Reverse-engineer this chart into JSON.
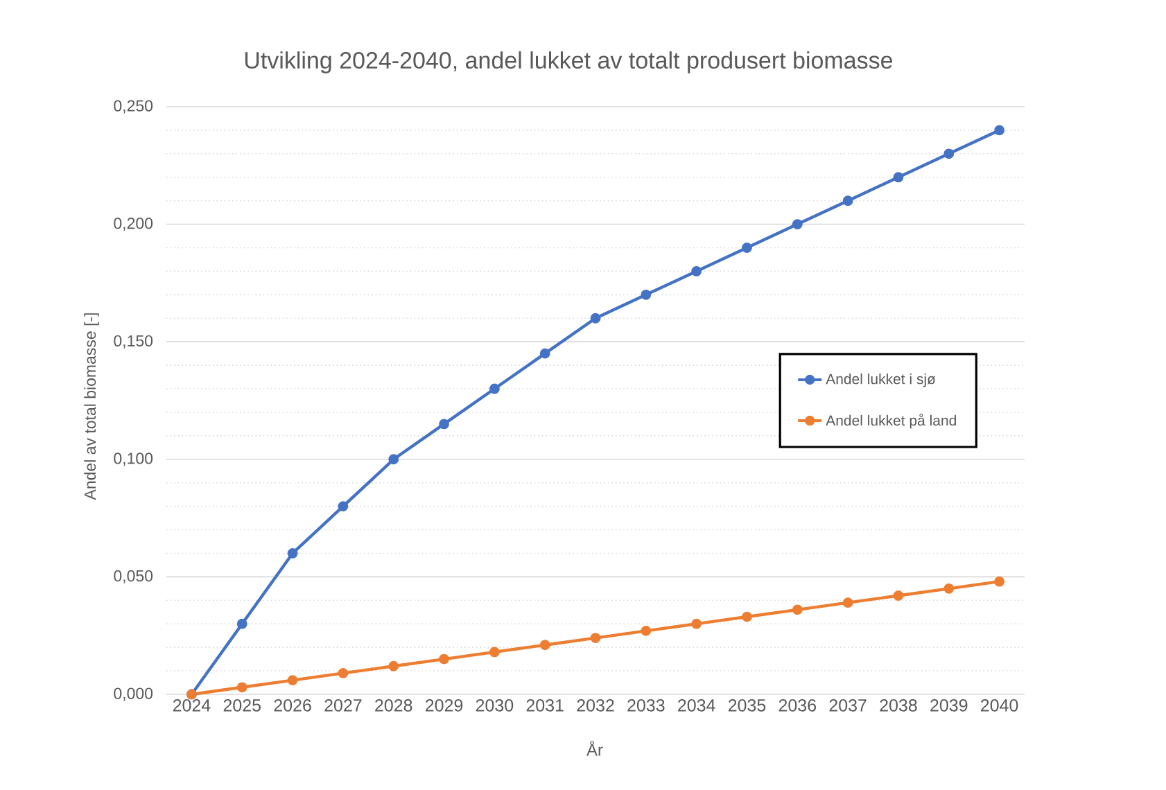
{
  "chart_data": {
    "type": "line",
    "title": "Utvikling 2024-2040, andel lukket av totalt produsert biomasse",
    "xlabel": "År",
    "ylabel": "Andel av total biomasse [-]",
    "categories": [
      "2024",
      "2025",
      "2026",
      "2027",
      "2028",
      "2029",
      "2030",
      "2031",
      "2032",
      "2033",
      "2034",
      "2035",
      "2036",
      "2037",
      "2038",
      "2039",
      "2040"
    ],
    "series": [
      {
        "name": "Andel lukket i sjø",
        "color": "#4472c4",
        "values": [
          0,
          0.03,
          0.06,
          0.08,
          0.1,
          0.115,
          0.13,
          0.145,
          0.16,
          0.17,
          0.18,
          0.19,
          0.2,
          0.21,
          0.22,
          0.23,
          0.24
        ]
      },
      {
        "name": "Andel lukket på land",
        "color": "#ed7d31",
        "values": [
          0,
          0.003,
          0.006,
          0.009,
          0.012,
          0.015,
          0.018,
          0.021,
          0.024,
          0.027,
          0.03,
          0.033,
          0.036,
          0.039,
          0.042,
          0.045,
          0.048
        ]
      }
    ],
    "ylim": [
      0,
      0.25
    ],
    "yticks": [
      {
        "value": 0,
        "label": "0,000"
      },
      {
        "value": 0.05,
        "label": "0,050"
      },
      {
        "value": 0.1,
        "label": "0,100"
      },
      {
        "value": 0.15,
        "label": "0,150"
      },
      {
        "value": 0.2,
        "label": "0,200"
      },
      {
        "value": 0.25,
        "label": "0,250"
      }
    ],
    "grid": "y",
    "legend": "right",
    "marker": "circle",
    "line_style": "solid"
  }
}
